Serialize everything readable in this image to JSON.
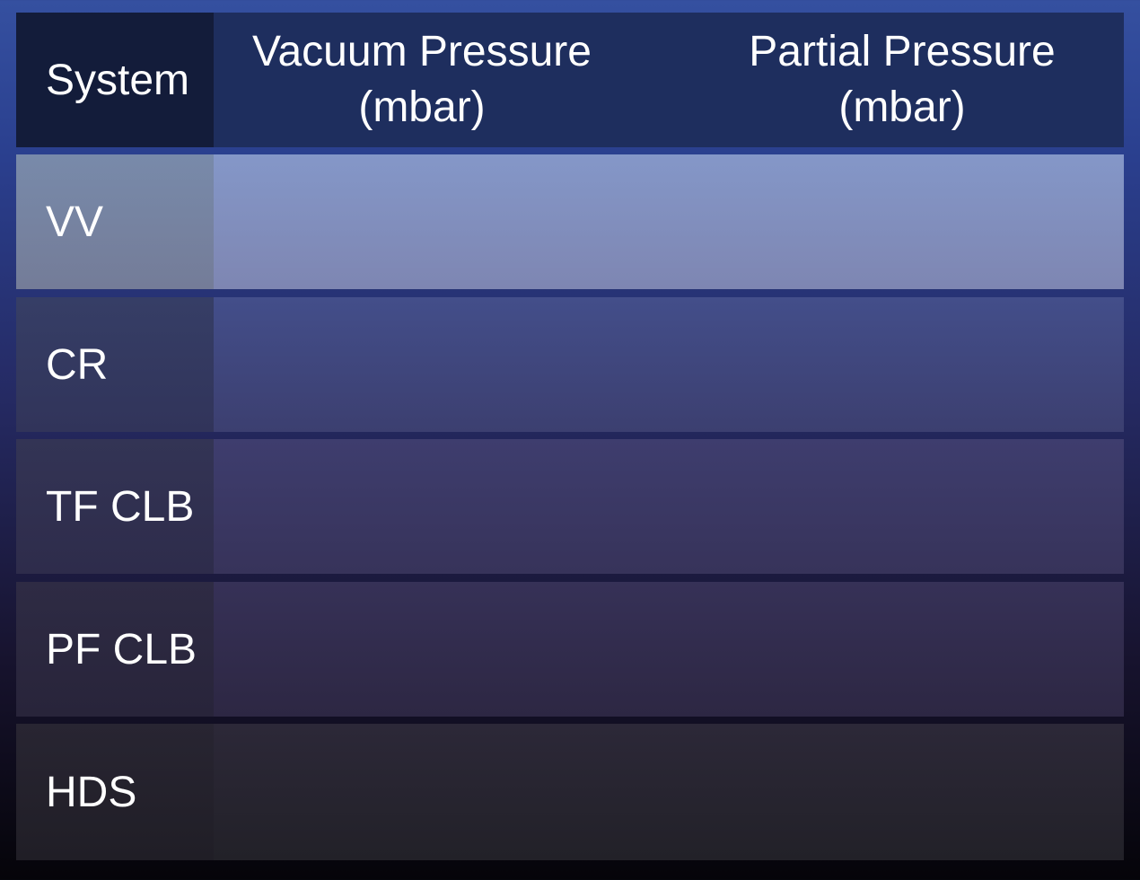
{
  "table": {
    "headers": {
      "system": "System",
      "vacuum_line1": "Vacuum Pressure",
      "vacuum_line2": "(mbar)",
      "partial_line1": "Partial Pressure",
      "partial_line2": "(mbar)"
    },
    "rows": [
      {
        "system": "VV",
        "vacuum": "",
        "partial": ""
      },
      {
        "system": "CR",
        "vacuum": "",
        "partial": ""
      },
      {
        "system": "TF CLB",
        "vacuum": "",
        "partial": ""
      },
      {
        "system": "PF CLB",
        "vacuum": "",
        "partial": ""
      },
      {
        "system": "HDS",
        "vacuum": "",
        "partial": ""
      }
    ]
  }
}
